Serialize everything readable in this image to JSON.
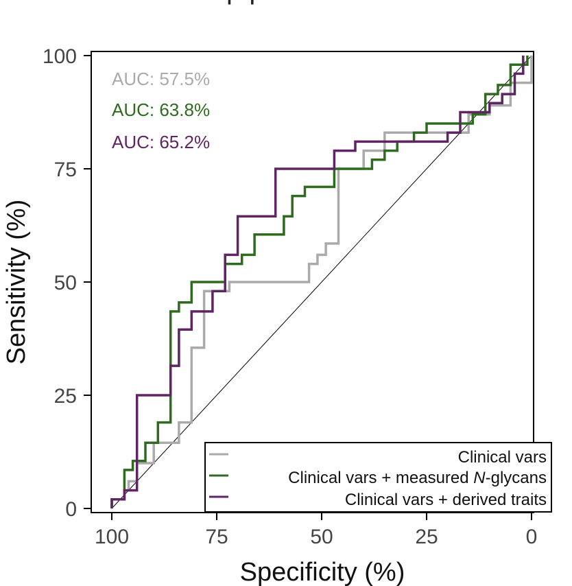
{
  "chart_data": {
    "type": "line",
    "title_fragment": "p                       p",
    "xlabel": "Specificity (%)",
    "ylabel": "Sensitivity (%)",
    "xlim": [
      100,
      0
    ],
    "ylim": [
      0,
      100
    ],
    "x_ticks": [
      100,
      75,
      50,
      25,
      0
    ],
    "y_ticks": [
      0,
      25,
      50,
      75,
      100
    ],
    "x_tick_labels": [
      "100",
      "75",
      "50",
      "25",
      "0"
    ],
    "y_tick_labels": [
      "0",
      "25",
      "50",
      "75",
      "100"
    ],
    "reference_line": {
      "from": [
        100,
        0
      ],
      "to": [
        0,
        100
      ]
    },
    "legend": {
      "placement": "bottom-right",
      "entries": [
        "Clinical vars",
        "Clinical vars + measured N-glycans",
        "Clinical vars + derived traits"
      ]
    },
    "series": [
      {
        "name": "Clinical vars",
        "color": "#aaaaaa",
        "auc_label": "AUC: 57.5%",
        "points": [
          [
            100,
            0
          ],
          [
            100,
            2
          ],
          [
            97,
            2
          ],
          [
            97,
            4
          ],
          [
            96,
            4
          ],
          [
            96,
            6
          ],
          [
            94,
            6
          ],
          [
            94,
            10
          ],
          [
            90,
            10
          ],
          [
            90,
            14.5
          ],
          [
            84,
            14.5
          ],
          [
            84,
            19
          ],
          [
            81,
            19
          ],
          [
            81,
            35.5
          ],
          [
            78,
            35.5
          ],
          [
            78,
            48
          ],
          [
            72,
            48
          ],
          [
            72,
            50
          ],
          [
            53,
            50
          ],
          [
            53,
            54
          ],
          [
            51,
            54
          ],
          [
            51,
            56
          ],
          [
            49,
            56
          ],
          [
            49,
            58.5
          ],
          [
            46,
            58.5
          ],
          [
            46,
            75
          ],
          [
            40,
            75
          ],
          [
            40,
            79
          ],
          [
            35,
            79
          ],
          [
            35,
            83
          ],
          [
            28,
            83
          ],
          [
            28,
            83
          ],
          [
            15,
            83
          ],
          [
            15,
            87
          ],
          [
            10,
            87
          ],
          [
            10,
            89
          ],
          [
            5,
            89
          ],
          [
            5,
            94
          ],
          [
            0,
            94
          ],
          [
            0,
            100
          ]
        ]
      },
      {
        "name": "Clinical vars + measured N-glycans",
        "color": "#2e6b1f",
        "auc_label": "AUC: 63.8%",
        "points": [
          [
            100,
            0
          ],
          [
            100,
            2
          ],
          [
            97,
            2
          ],
          [
            97,
            8.5
          ],
          [
            95,
            8.5
          ],
          [
            95,
            10.5
          ],
          [
            92,
            10.5
          ],
          [
            92,
            14.5
          ],
          [
            89,
            14.5
          ],
          [
            89,
            19
          ],
          [
            86,
            19
          ],
          [
            86,
            43.5
          ],
          [
            84,
            43.5
          ],
          [
            84,
            45.5
          ],
          [
            81,
            45.5
          ],
          [
            81,
            50
          ],
          [
            73,
            50
          ],
          [
            73,
            54
          ],
          [
            69,
            54
          ],
          [
            69,
            56
          ],
          [
            66,
            56
          ],
          [
            66,
            60.5
          ],
          [
            59,
            60.5
          ],
          [
            59,
            64.5
          ],
          [
            57,
            64.5
          ],
          [
            57,
            69
          ],
          [
            54,
            69
          ],
          [
            54,
            71
          ],
          [
            47,
            71
          ],
          [
            47,
            75
          ],
          [
            38,
            75
          ],
          [
            38,
            77
          ],
          [
            35,
            77
          ],
          [
            35,
            79
          ],
          [
            32,
            79
          ],
          [
            32,
            81
          ],
          [
            28,
            81
          ],
          [
            28,
            83
          ],
          [
            25,
            83
          ],
          [
            25,
            85
          ],
          [
            19,
            85
          ],
          [
            19,
            85
          ],
          [
            14,
            85
          ],
          [
            14,
            87
          ],
          [
            11,
            87
          ],
          [
            11,
            91.5
          ],
          [
            8,
            91.5
          ],
          [
            8,
            93.5
          ],
          [
            5,
            93.5
          ],
          [
            5,
            98
          ],
          [
            1,
            98
          ],
          [
            1,
            100
          ]
        ]
      },
      {
        "name": "Clinical vars + derived traits",
        "color": "#5f2464",
        "auc_label": "AUC: 65.2%",
        "points": [
          [
            100,
            0
          ],
          [
            100,
            2
          ],
          [
            97,
            2
          ],
          [
            97,
            4
          ],
          [
            94,
            4
          ],
          [
            94,
            25
          ],
          [
            86,
            25
          ],
          [
            86,
            31.5
          ],
          [
            84,
            31.5
          ],
          [
            84,
            39.5
          ],
          [
            81,
            39.5
          ],
          [
            81,
            43.5
          ],
          [
            76,
            43.5
          ],
          [
            76,
            48
          ],
          [
            73,
            48
          ],
          [
            73,
            56
          ],
          [
            70,
            56
          ],
          [
            70,
            64.5
          ],
          [
            61,
            64.5
          ],
          [
            61,
            75
          ],
          [
            47,
            75
          ],
          [
            47,
            79
          ],
          [
            42,
            79
          ],
          [
            42,
            81
          ],
          [
            20,
            81
          ],
          [
            20,
            83
          ],
          [
            17,
            83
          ],
          [
            17,
            87.5
          ],
          [
            10,
            87.5
          ],
          [
            10,
            89.5
          ],
          [
            7,
            89.5
          ],
          [
            7,
            91.5
          ],
          [
            4,
            91.5
          ],
          [
            4,
            96
          ],
          [
            2,
            96
          ],
          [
            2,
            100
          ]
        ]
      }
    ]
  }
}
